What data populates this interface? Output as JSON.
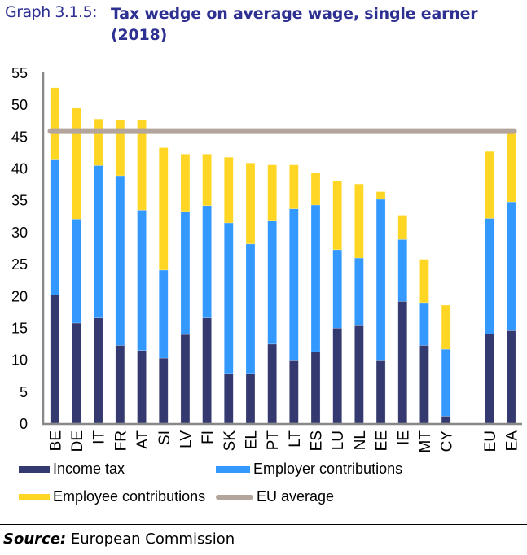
{
  "header": {
    "graph_number": "Graph 3.1.5:",
    "title": "Tax wedge on average wage, single earner (2018)"
  },
  "source": {
    "label": "Source:",
    "text": "European  Commission"
  },
  "chart_data": {
    "type": "bar",
    "stacked": true,
    "title": "Tax wedge on average wage, single earner (2018)",
    "xlabel": "",
    "ylabel": "",
    "ylim": [
      0,
      55
    ],
    "yticks": [
      0,
      5,
      10,
      15,
      20,
      25,
      30,
      35,
      40,
      45,
      50,
      55
    ],
    "grid": false,
    "categories": [
      "BE",
      "DE",
      "IT",
      "FR",
      "AT",
      "SI",
      "LV",
      "FI",
      "SK",
      "EL",
      "PT",
      "LT",
      "ES",
      "LU",
      "NL",
      "EE",
      "IE",
      "MT",
      "CY",
      "",
      "EU",
      "EA"
    ],
    "series": [
      {
        "name": "Income tax",
        "color": "#343a6f",
        "values": [
          20.1,
          15.7,
          16.5,
          12.2,
          11.4,
          10.2,
          13.9,
          16.5,
          7.8,
          7.8,
          12.4,
          9.9,
          11.2,
          14.9,
          15.4,
          9.9,
          19.1,
          12.2,
          1.1,
          null,
          14.0,
          14.5
        ]
      },
      {
        "name": "Employer contributions",
        "color": "#3399ff",
        "values": [
          21.3,
          16.3,
          23.9,
          26.6,
          22.0,
          13.8,
          19.3,
          17.6,
          23.6,
          20.3,
          19.4,
          23.7,
          23.0,
          12.3,
          10.5,
          25.2,
          9.7,
          6.7,
          10.5,
          null,
          18.1,
          20.2
        ]
      },
      {
        "name": "Employee contributions",
        "color": "#ffd624",
        "values": [
          11.2,
          17.4,
          7.3,
          8.7,
          14.1,
          19.2,
          9.0,
          8.1,
          10.3,
          12.7,
          8.7,
          6.9,
          5.1,
          10.8,
          11.6,
          1.2,
          3.8,
          6.8,
          6.9,
          null,
          10.5,
          10.9
        ]
      }
    ],
    "lines": [
      {
        "name": "EU average",
        "color": "#b3a59c",
        "value": 45.8
      }
    ],
    "legend": {
      "position": "bottom",
      "entries": [
        {
          "label": "Income tax",
          "type": "bar",
          "color": "#343a6f"
        },
        {
          "label": "Employer contributions",
          "type": "bar",
          "color": "#3399ff"
        },
        {
          "label": "Employee contributions",
          "type": "bar",
          "color": "#ffd624"
        },
        {
          "label": "EU average",
          "type": "line",
          "color": "#b3a59c"
        }
      ]
    }
  }
}
